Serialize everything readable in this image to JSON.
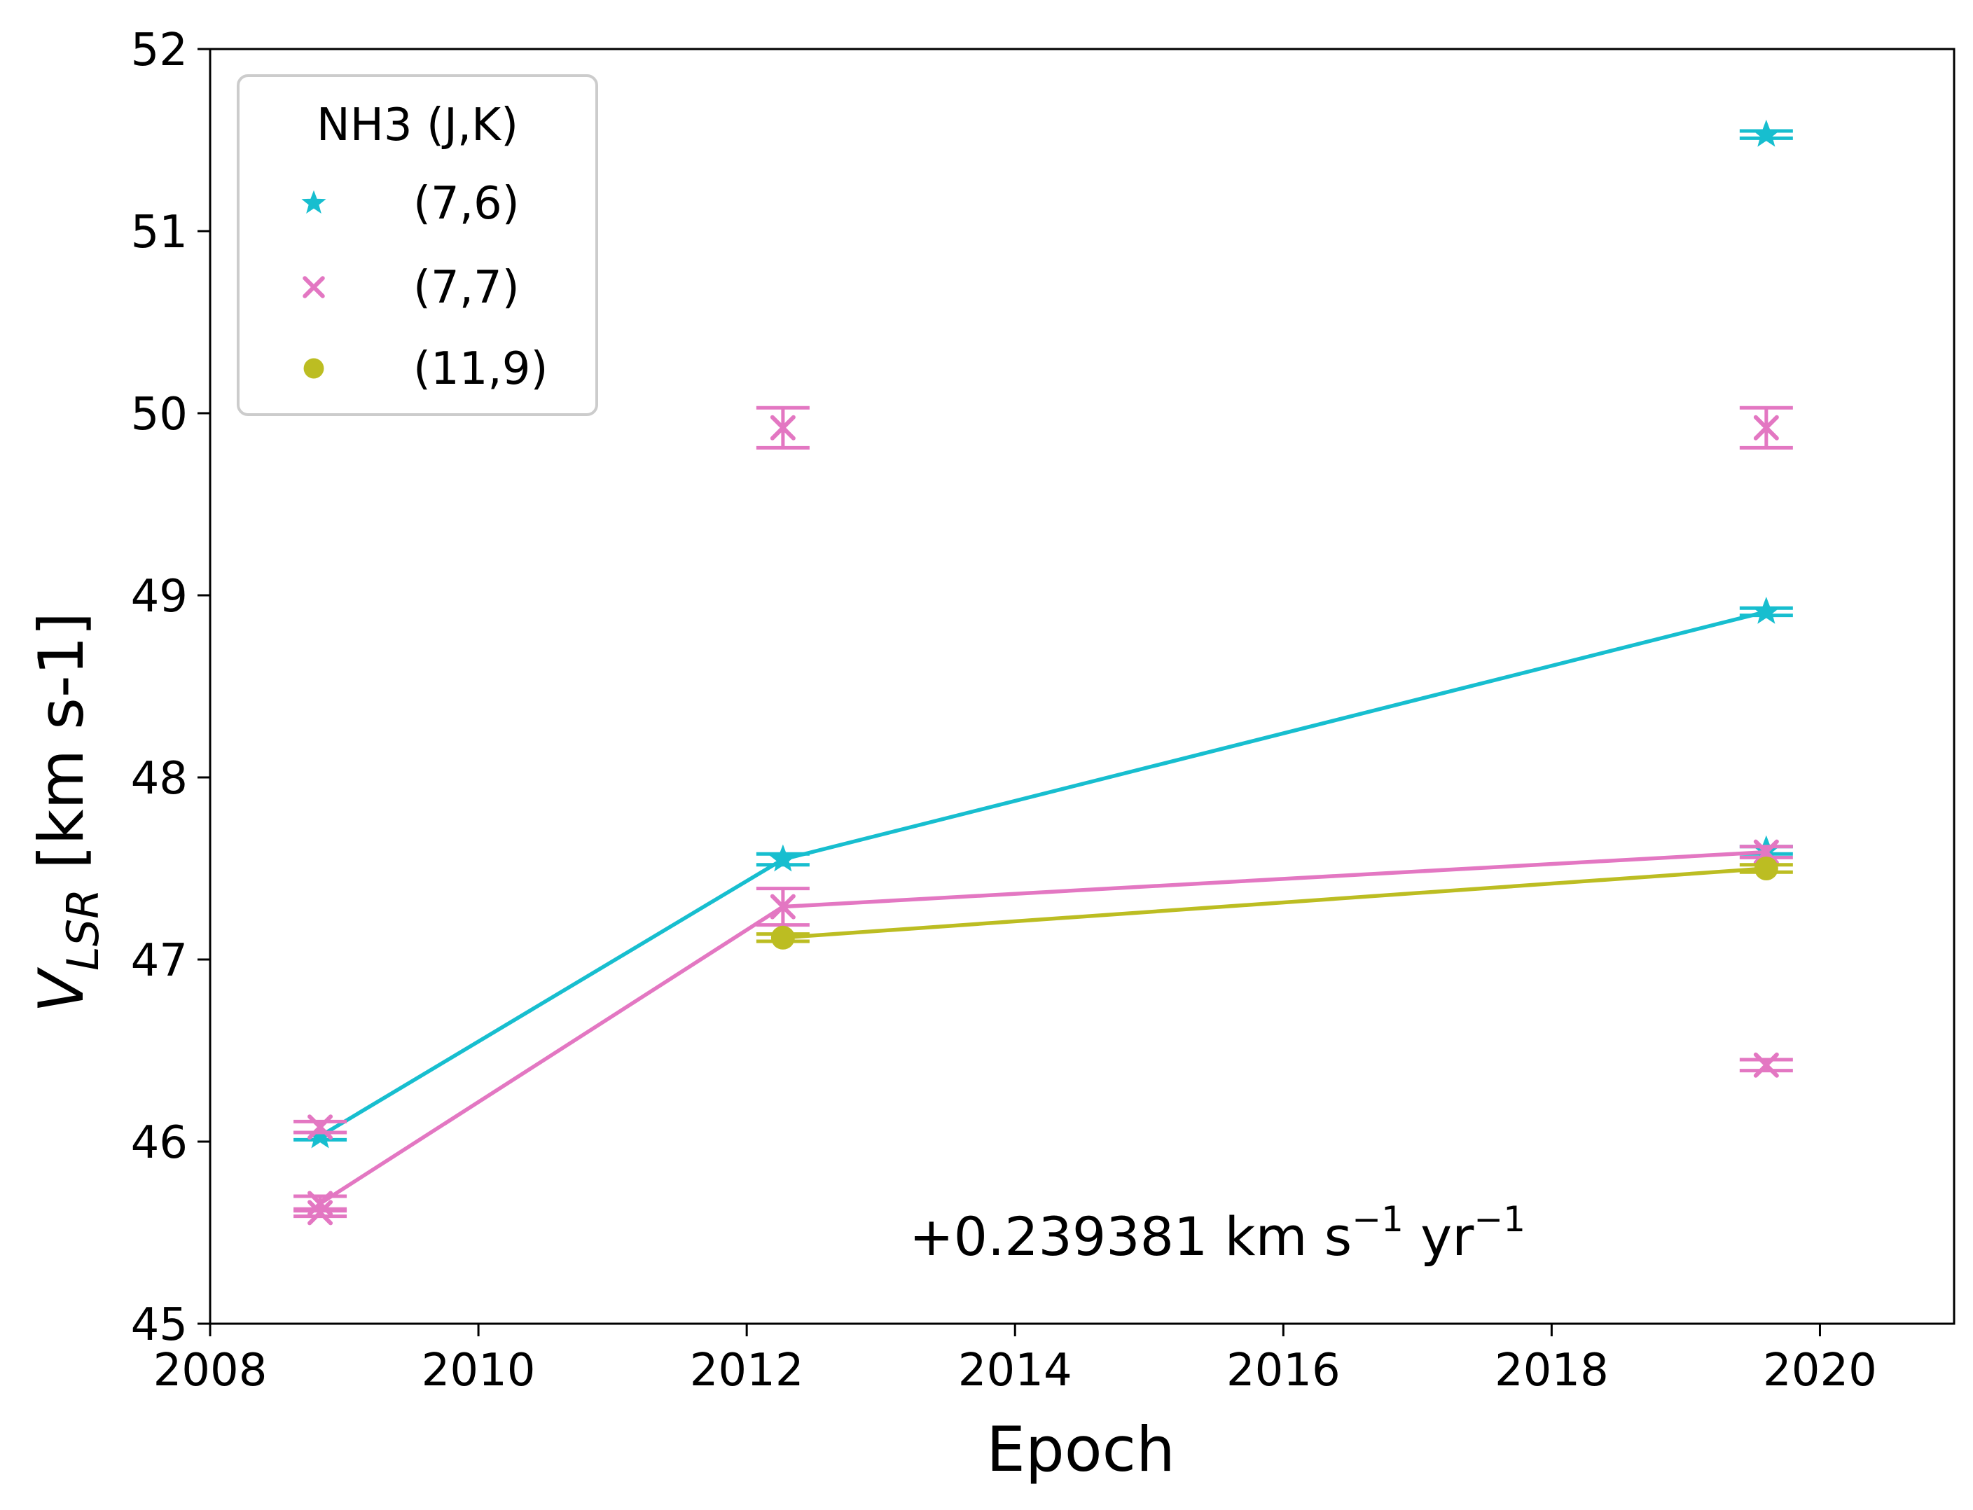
{
  "chart_data": {
    "type": "line",
    "xlabel": "Epoch",
    "ylabel_main": "V",
    "ylabel_sub": "LSR",
    "ylabel_units": " [km s-1]",
    "xlim": [
      2008,
      2021
    ],
    "ylim": [
      45,
      52
    ],
    "xticks": [
      "2008",
      "2010",
      "2012",
      "2014",
      "2016",
      "2018",
      "2020"
    ],
    "yticks": [
      "45",
      "46",
      "47",
      "48",
      "49",
      "50",
      "51",
      "52"
    ],
    "legend": {
      "title": "NH3 (J,K)",
      "placement": "upper-left",
      "entries": [
        "(7,6)",
        "(7,7)",
        "(11,9)"
      ]
    },
    "annotation": {
      "prefix": "+0.239381 km s",
      "sup1": "−1",
      "mid": " yr",
      "sup2": "−1"
    },
    "series": [
      {
        "name": "(7,6)",
        "color": "#17becf",
        "marker": "star",
        "line": {
          "x": [
            2008.82,
            2012.27,
            2019.6
          ],
          "y": [
            46.03,
            47.55,
            48.91
          ]
        },
        "points": [
          {
            "x": 2008.82,
            "y": 46.03,
            "err": 0.02
          },
          {
            "x": 2012.27,
            "y": 47.55,
            "err": 0.03
          },
          {
            "x": 2019.6,
            "y": 48.91,
            "err": 0.02
          },
          {
            "x": 2019.6,
            "y": 51.53,
            "err": 0.02
          },
          {
            "x": 2019.6,
            "y": 47.6,
            "err": 0.02
          }
        ]
      },
      {
        "name": "(7,7)",
        "color": "#e377c2",
        "marker": "x",
        "line": {
          "x": [
            2008.82,
            2012.27,
            2019.6
          ],
          "y": [
            45.66,
            47.29,
            47.59
          ]
        },
        "points": [
          {
            "x": 2008.82,
            "y": 46.08,
            "err": 0.03
          },
          {
            "x": 2008.82,
            "y": 45.66,
            "err": 0.04
          },
          {
            "x": 2008.82,
            "y": 45.61,
            "err": 0.02
          },
          {
            "x": 2012.27,
            "y": 49.92,
            "err": 0.11
          },
          {
            "x": 2012.27,
            "y": 47.29,
            "err": 0.1
          },
          {
            "x": 2019.6,
            "y": 49.92,
            "err": 0.11
          },
          {
            "x": 2019.6,
            "y": 47.59,
            "err": 0.03
          },
          {
            "x": 2019.6,
            "y": 46.42,
            "err": 0.03
          }
        ]
      },
      {
        "name": "(11,9)",
        "color": "#bcbd22",
        "marker": "circle",
        "line": {
          "x": [
            2012.27,
            2019.6
          ],
          "y": [
            47.12,
            47.5
          ]
        },
        "points": [
          {
            "x": 2012.27,
            "y": 47.12,
            "err": 0.02
          },
          {
            "x": 2019.6,
            "y": 47.5,
            "err": 0.02
          }
        ]
      }
    ]
  }
}
